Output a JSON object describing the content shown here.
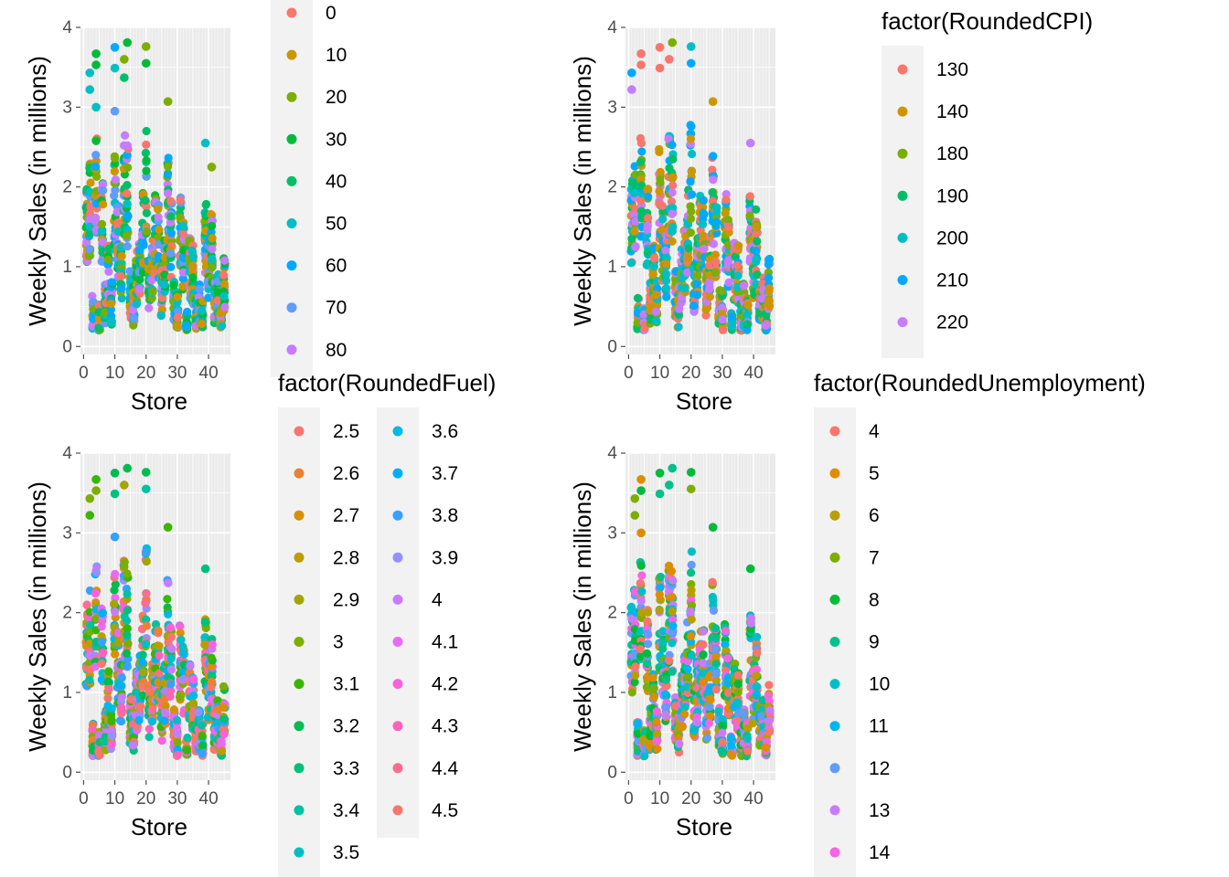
{
  "chart_data": [
    {
      "type": "scatter",
      "panel": "top-left",
      "xlabel": "Store",
      "ylabel": "Weekly Sales (in millions)",
      "xlim": [
        -1,
        47
      ],
      "ylim": [
        -0.1,
        4.0
      ],
      "xticks": [
        "0",
        "10",
        "20",
        "30",
        "40"
      ],
      "xtick_values": [
        0,
        10,
        20,
        30,
        40
      ],
      "yticks": [
        "0",
        "1",
        "2",
        "3",
        "4"
      ],
      "ytick_values": [
        0,
        1,
        2,
        3,
        4
      ],
      "grid": true,
      "legend": {
        "title": "",
        "position": "right",
        "clipped": "top",
        "columns": [
          [
            "0",
            "10",
            "20",
            "30",
            "40",
            "50",
            "60",
            "70",
            "80"
          ]
        ],
        "colors": [
          "#F8766D",
          "#CD9600",
          "#7CAE00",
          "#00BA38",
          "#00BE67",
          "#00BFC4",
          "#00A9FF",
          "#619CFF",
          "#C77CFF"
        ]
      },
      "highlights": [
        {
          "x": 2,
          "y": 3.22,
          "c": 5
        },
        {
          "x": 2,
          "y": 3.43,
          "c": 5
        },
        {
          "x": 4,
          "y": 3.53,
          "c": 3
        },
        {
          "x": 4,
          "y": 3.67,
          "c": 3
        },
        {
          "x": 4,
          "y": 3.0,
          "c": 5
        },
        {
          "x": 10,
          "y": 3.75,
          "c": 6
        },
        {
          "x": 10,
          "y": 3.49,
          "c": 5
        },
        {
          "x": 13,
          "y": 3.6,
          "c": 2
        },
        {
          "x": 14,
          "y": 3.81,
          "c": 3
        },
        {
          "x": 13,
          "y": 3.37,
          "c": 4
        },
        {
          "x": 20,
          "y": 3.76,
          "c": 2
        },
        {
          "x": 20,
          "y": 3.55,
          "c": 3
        },
        {
          "x": 27,
          "y": 3.07,
          "c": 2
        },
        {
          "x": 10,
          "y": 2.95,
          "c": 7
        },
        {
          "x": 39,
          "y": 2.55,
          "c": 5
        },
        {
          "x": 41,
          "y": 2.25,
          "c": 2
        }
      ]
    },
    {
      "type": "scatter",
      "panel": "top-right",
      "xlabel": "Store",
      "ylabel": "Weekly Sales (in millions)",
      "xlim": [
        -1,
        47
      ],
      "ylim": [
        -0.1,
        4.0
      ],
      "xticks": [
        "0",
        "10",
        "20",
        "30",
        "40"
      ],
      "xtick_values": [
        0,
        10,
        20,
        30,
        40
      ],
      "yticks": [
        "0",
        "1",
        "2",
        "3",
        "4"
      ],
      "ytick_values": [
        0,
        1,
        2,
        3,
        4
      ],
      "grid": true,
      "legend": {
        "title": "factor(RoundedCPI)",
        "position": "right",
        "clipped": "bottom",
        "columns": [
          [
            "130",
            "140",
            "180",
            "190",
            "200",
            "210",
            "220"
          ]
        ],
        "colors": [
          "#F8766D",
          "#CD9600",
          "#7CAE00",
          "#00BE67",
          "#00BFC4",
          "#00A9FF",
          "#C77CFF"
        ]
      },
      "highlights": [
        {
          "x": 1,
          "y": 3.43,
          "c": 5
        },
        {
          "x": 1,
          "y": 3.22,
          "c": 6
        },
        {
          "x": 4,
          "y": 3.53,
          "c": 0
        },
        {
          "x": 4,
          "y": 3.67,
          "c": 0
        },
        {
          "x": 10,
          "y": 3.75,
          "c": 0
        },
        {
          "x": 10,
          "y": 3.49,
          "c": 0
        },
        {
          "x": 13,
          "y": 3.6,
          "c": 0
        },
        {
          "x": 14,
          "y": 3.81,
          "c": 2
        },
        {
          "x": 20,
          "y": 3.76,
          "c": 4
        },
        {
          "x": 20,
          "y": 3.55,
          "c": 5
        },
        {
          "x": 27,
          "y": 3.07,
          "c": 1
        },
        {
          "x": 39,
          "y": 2.55,
          "c": 6
        }
      ]
    },
    {
      "type": "scatter",
      "panel": "bottom-left",
      "xlabel": "Store",
      "ylabel": "Weekly Sales (in millions)",
      "xlim": [
        -1,
        47
      ],
      "ylim": [
        -0.1,
        4.0
      ],
      "xticks": [
        "0",
        "10",
        "20",
        "30",
        "40"
      ],
      "xtick_values": [
        0,
        10,
        20,
        30,
        40
      ],
      "yticks": [
        "0",
        "1",
        "2",
        "3",
        "4"
      ],
      "ytick_values": [
        0,
        1,
        2,
        3,
        4
      ],
      "grid": true,
      "legend": {
        "title": "factor(RoundedFuel)",
        "position": "right",
        "columns": [
          [
            "2.5",
            "2.6",
            "2.7",
            "2.8",
            "2.9",
            "3",
            "3.1",
            "3.2",
            "3.3",
            "3.4",
            "3.5"
          ],
          [
            "3.6",
            "3.7",
            "3.8",
            "3.9",
            "4",
            "4.1",
            "4.2",
            "4.3",
            "4.4",
            "4.5"
          ]
        ],
        "colors": [
          "#F8766D",
          "#EA8331",
          "#D89000",
          "#C09B00",
          "#A3A500",
          "#7CAE00",
          "#39B600",
          "#00BB4E",
          "#00BF7D",
          "#00C1A3",
          "#00BFC4",
          "#00BAE0",
          "#00B0F6",
          "#35A2FF",
          "#9590FF",
          "#C77CFF",
          "#E76BF3",
          "#FA62DB",
          "#FF62BC",
          "#FF6C91",
          "#F8766D"
        ]
      },
      "highlights": [
        {
          "x": 2,
          "y": 3.43,
          "c": 5
        },
        {
          "x": 2,
          "y": 3.22,
          "c": 6
        },
        {
          "x": 4,
          "y": 3.53,
          "c": 5
        },
        {
          "x": 4,
          "y": 3.67,
          "c": 6
        },
        {
          "x": 10,
          "y": 3.75,
          "c": 7
        },
        {
          "x": 10,
          "y": 3.49,
          "c": 8
        },
        {
          "x": 13,
          "y": 3.6,
          "c": 4
        },
        {
          "x": 14,
          "y": 3.81,
          "c": 7
        },
        {
          "x": 20,
          "y": 3.76,
          "c": 7
        },
        {
          "x": 20,
          "y": 3.55,
          "c": 9
        },
        {
          "x": 27,
          "y": 3.07,
          "c": 6
        },
        {
          "x": 10,
          "y": 2.95,
          "c": 13
        },
        {
          "x": 39,
          "y": 2.55,
          "c": 8
        }
      ]
    },
    {
      "type": "scatter",
      "panel": "bottom-right",
      "xlabel": "Store",
      "ylabel": "Weekly Sales (in millions)",
      "xlim": [
        -1,
        47
      ],
      "ylim": [
        -0.1,
        4.0
      ],
      "xticks": [
        "0",
        "10",
        "20",
        "30",
        "40"
      ],
      "xtick_values": [
        0,
        10,
        20,
        30,
        40
      ],
      "yticks": [
        "0",
        "1",
        "2",
        "3",
        "4"
      ],
      "ytick_values": [
        0,
        1,
        2,
        3,
        4
      ],
      "grid": true,
      "legend": {
        "title": "factor(RoundedUnemployment)",
        "position": "right",
        "columns": [
          [
            "4",
            "5",
            "6",
            "7",
            "8",
            "9",
            "10",
            "11",
            "12",
            "13",
            "14"
          ]
        ],
        "colors": [
          "#F8766D",
          "#DE8C00",
          "#B79F00",
          "#7CAE00",
          "#00BA38",
          "#00C08B",
          "#00BFC4",
          "#00B4F0",
          "#619CFF",
          "#C77CFF",
          "#F564E3"
        ]
      },
      "highlights": [
        {
          "x": 2,
          "y": 3.43,
          "c": 3
        },
        {
          "x": 2,
          "y": 3.22,
          "c": 3
        },
        {
          "x": 4,
          "y": 3.53,
          "c": 4
        },
        {
          "x": 4,
          "y": 3.67,
          "c": 1
        },
        {
          "x": 4,
          "y": 3.0,
          "c": 1
        },
        {
          "x": 10,
          "y": 3.75,
          "c": 4
        },
        {
          "x": 10,
          "y": 3.49,
          "c": 5
        },
        {
          "x": 13,
          "y": 3.6,
          "c": 5
        },
        {
          "x": 14,
          "y": 3.81,
          "c": 5
        },
        {
          "x": 20,
          "y": 3.76,
          "c": 4
        },
        {
          "x": 20,
          "y": 3.55,
          "c": 3
        },
        {
          "x": 27,
          "y": 3.07,
          "c": 4
        },
        {
          "x": 39,
          "y": 2.55,
          "c": 4
        }
      ]
    }
  ],
  "theme": {
    "panel_bg": "#EBEBEB",
    "grid_major": "#FFFFFF",
    "legend_key_bg": "#F2F2F2",
    "tick_color": "#4D4D4D"
  }
}
